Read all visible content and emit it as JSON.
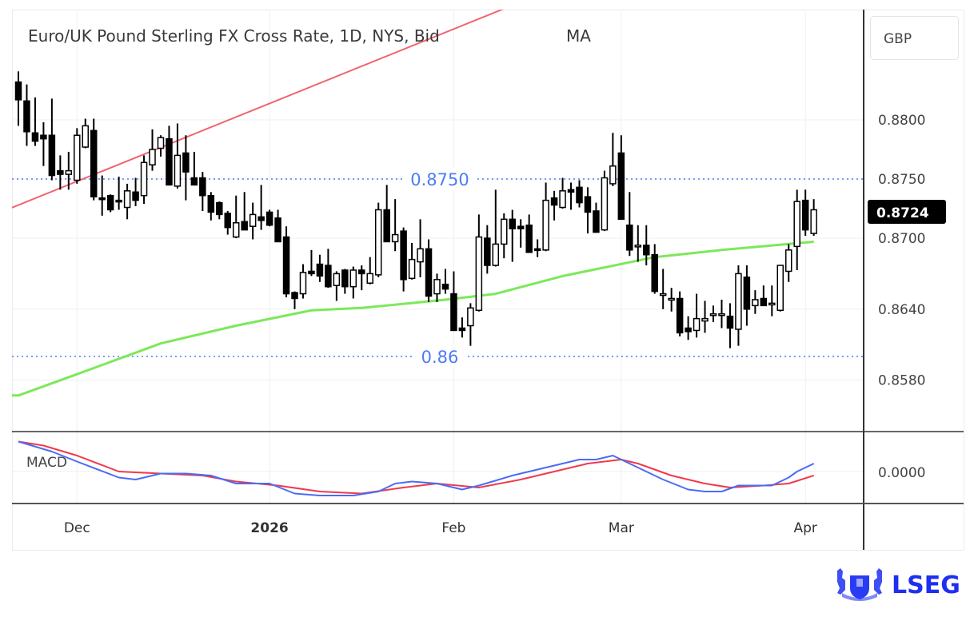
{
  "header": {
    "title": "Euro/UK Pound Sterling FX Cross Rate, 1D, NYS, Bid",
    "indicator": "MA",
    "currency": "GBP"
  },
  "logo": {
    "text": "LSEG",
    "color": "#1f2ff0"
  },
  "chart_data": {
    "type": "candlestick",
    "title": "Euro/UK Pound Sterling FX Cross Rate, 1D, NYS, Bid",
    "y_ticks": [
      "0.8800",
      "0.8750",
      "0.8700",
      "0.8640",
      "0.8580"
    ],
    "x_ticks": [
      {
        "label": "Dec",
        "date": "2025-12-01"
      },
      {
        "label": "2026",
        "date": "2026-01-01"
      },
      {
        "label": "Feb",
        "date": "2026-02-02"
      },
      {
        "label": "Mar",
        "date": "2026-03-02"
      },
      {
        "label": "Apr",
        "date": "2026-04-01"
      }
    ],
    "last_price": "0.8724",
    "grid": true,
    "colors": {
      "down": "#000000",
      "up": "#ffffff",
      "ma": "#7de85a",
      "trendline": "#f06470",
      "level": "#4d7cf5",
      "macd": "#4a6cf5",
      "signal": "#f03a4a"
    },
    "levels": [
      {
        "price": 0.875,
        "label": "0.8750"
      },
      {
        "price": 0.86,
        "label": "0.86"
      }
    ],
    "trendline": [
      {
        "date": "2025-11-20",
        "price": 0.8728
      },
      {
        "date": "2026-02-10",
        "price": 0.8894
      }
    ],
    "ma": [
      [
        "2025-11-20",
        0.8567
      ],
      [
        "2025-12-01",
        0.8585
      ],
      [
        "2025-12-15",
        0.8611
      ],
      [
        "2025-12-26",
        0.8626
      ],
      [
        "2026-01-08",
        0.8639
      ],
      [
        "2026-01-16",
        0.8641
      ],
      [
        "2026-01-30",
        0.8648
      ],
      [
        "2026-02-09",
        0.8653
      ],
      [
        "2026-02-19",
        0.8668
      ],
      [
        "2026-03-06",
        0.8684
      ],
      [
        "2026-03-18",
        0.869
      ],
      [
        "2026-04-02",
        0.8697
      ]
    ],
    "candles": [
      {
        "d": "2025-11-20",
        "o": 0.8832,
        "h": 0.8841,
        "l": 0.8795,
        "c": 0.8817
      },
      {
        "d": "2025-11-21",
        "o": 0.8816,
        "h": 0.883,
        "l": 0.8778,
        "c": 0.879
      },
      {
        "d": "2025-11-24",
        "o": 0.8789,
        "h": 0.8819,
        "l": 0.8778,
        "c": 0.8782
      },
      {
        "d": "2025-11-25",
        "o": 0.8787,
        "h": 0.8798,
        "l": 0.8761,
        "c": 0.8784
      },
      {
        "d": "2025-11-26",
        "o": 0.8787,
        "h": 0.8818,
        "l": 0.8749,
        "c": 0.8753
      },
      {
        "d": "2025-11-27",
        "o": 0.8757,
        "h": 0.877,
        "l": 0.8741,
        "c": 0.8754
      },
      {
        "d": "2025-11-28",
        "o": 0.8754,
        "h": 0.8773,
        "l": 0.8741,
        "c": 0.8757
      },
      {
        "d": "2025-12-01",
        "o": 0.8749,
        "h": 0.8793,
        "l": 0.8746,
        "c": 0.8787
      },
      {
        "d": "2025-12-02",
        "o": 0.8777,
        "h": 0.8801,
        "l": 0.8776,
        "c": 0.8795
      },
      {
        "d": "2025-12-03",
        "o": 0.8791,
        "h": 0.8801,
        "l": 0.8732,
        "c": 0.8735
      },
      {
        "d": "2025-12-04",
        "o": 0.8734,
        "h": 0.8753,
        "l": 0.8719,
        "c": 0.8733
      },
      {
        "d": "2025-12-05",
        "o": 0.8736,
        "h": 0.8737,
        "l": 0.8722,
        "c": 0.8724
      },
      {
        "d": "2025-12-08",
        "o": 0.8732,
        "h": 0.8752,
        "l": 0.8724,
        "c": 0.8731
      },
      {
        "d": "2025-12-09",
        "o": 0.8726,
        "h": 0.8746,
        "l": 0.8716,
        "c": 0.874
      },
      {
        "d": "2025-12-10",
        "o": 0.8739,
        "h": 0.8751,
        "l": 0.8727,
        "c": 0.8732
      },
      {
        "d": "2025-12-11",
        "o": 0.8736,
        "h": 0.877,
        "l": 0.8729,
        "c": 0.8764
      },
      {
        "d": "2025-12-12",
        "o": 0.8762,
        "h": 0.8792,
        "l": 0.8757,
        "c": 0.8775
      },
      {
        "d": "2025-12-15",
        "o": 0.8776,
        "h": 0.8787,
        "l": 0.8769,
        "c": 0.8785
      },
      {
        "d": "2025-12-16",
        "o": 0.8784,
        "h": 0.8795,
        "l": 0.8745,
        "c": 0.8745
      },
      {
        "d": "2025-12-17",
        "o": 0.8744,
        "h": 0.8797,
        "l": 0.8742,
        "c": 0.877
      },
      {
        "d": "2025-12-18",
        "o": 0.8772,
        "h": 0.8787,
        "l": 0.8732,
        "c": 0.8756
      },
      {
        "d": "2025-12-19",
        "o": 0.8751,
        "h": 0.8773,
        "l": 0.8745,
        "c": 0.8745
      },
      {
        "d": "2025-12-22",
        "o": 0.8751,
        "h": 0.8756,
        "l": 0.8723,
        "c": 0.8736
      },
      {
        "d": "2025-12-23",
        "o": 0.8736,
        "h": 0.8739,
        "l": 0.8715,
        "c": 0.8722
      },
      {
        "d": "2025-12-24",
        "o": 0.873,
        "h": 0.8731,
        "l": 0.8716,
        "c": 0.872
      },
      {
        "d": "2025-12-25",
        "o": 0.8721,
        "h": 0.8723,
        "l": 0.8703,
        "c": 0.8709
      },
      {
        "d": "2025-12-26",
        "o": 0.8701,
        "h": 0.8736,
        "l": 0.87,
        "c": 0.8713
      },
      {
        "d": "2025-12-29",
        "o": 0.8714,
        "h": 0.8739,
        "l": 0.8707,
        "c": 0.8707
      },
      {
        "d": "2025-12-30",
        "o": 0.871,
        "h": 0.873,
        "l": 0.8699,
        "c": 0.872
      },
      {
        "d": "2025-12-31",
        "o": 0.8718,
        "h": 0.8745,
        "l": 0.8707,
        "c": 0.8715
      },
      {
        "d": "2026-01-01",
        "o": 0.8722,
        "h": 0.8724,
        "l": 0.871,
        "c": 0.8711
      },
      {
        "d": "2026-01-02",
        "o": 0.8717,
        "h": 0.8724,
        "l": 0.8697,
        "c": 0.8697
      },
      {
        "d": "2026-01-05",
        "o": 0.8701,
        "h": 0.871,
        "l": 0.865,
        "c": 0.8653
      },
      {
        "d": "2026-01-06",
        "o": 0.8654,
        "h": 0.8655,
        "l": 0.864,
        "c": 0.8649
      },
      {
        "d": "2026-01-07",
        "o": 0.8653,
        "h": 0.8678,
        "l": 0.8649,
        "c": 0.8671
      },
      {
        "d": "2026-01-08",
        "o": 0.8672,
        "h": 0.869,
        "l": 0.8668,
        "c": 0.867
      },
      {
        "d": "2026-01-09",
        "o": 0.8678,
        "h": 0.8686,
        "l": 0.8663,
        "c": 0.8668
      },
      {
        "d": "2026-01-12",
        "o": 0.8677,
        "h": 0.8691,
        "l": 0.8658,
        "c": 0.8659
      },
      {
        "d": "2026-01-13",
        "o": 0.866,
        "h": 0.8672,
        "l": 0.8647,
        "c": 0.867
      },
      {
        "d": "2026-01-14",
        "o": 0.8673,
        "h": 0.8674,
        "l": 0.8653,
        "c": 0.8659
      },
      {
        "d": "2026-01-15",
        "o": 0.8659,
        "h": 0.8676,
        "l": 0.8649,
        "c": 0.8673
      },
      {
        "d": "2026-01-16",
        "o": 0.8673,
        "h": 0.8677,
        "l": 0.8656,
        "c": 0.867
      },
      {
        "d": "2026-01-19",
        "o": 0.8662,
        "h": 0.8684,
        "l": 0.8661,
        "c": 0.867
      },
      {
        "d": "2026-01-20",
        "o": 0.8669,
        "h": 0.873,
        "l": 0.8667,
        "c": 0.8724
      },
      {
        "d": "2026-01-21",
        "o": 0.8724,
        "h": 0.8745,
        "l": 0.8697,
        "c": 0.8697
      },
      {
        "d": "2026-01-22",
        "o": 0.8697,
        "h": 0.8733,
        "l": 0.8689,
        "c": 0.8703
      },
      {
        "d": "2026-01-23",
        "o": 0.8706,
        "h": 0.8709,
        "l": 0.8655,
        "c": 0.8665
      },
      {
        "d": "2026-01-26",
        "o": 0.8666,
        "h": 0.8696,
        "l": 0.8665,
        "c": 0.8682
      },
      {
        "d": "2026-01-27",
        "o": 0.868,
        "h": 0.8716,
        "l": 0.8667,
        "c": 0.8691
      },
      {
        "d": "2026-01-28",
        "o": 0.8691,
        "h": 0.8699,
        "l": 0.8646,
        "c": 0.8651
      },
      {
        "d": "2026-01-29",
        "o": 0.8653,
        "h": 0.867,
        "l": 0.8646,
        "c": 0.8665
      },
      {
        "d": "2026-01-30",
        "o": 0.8661,
        "h": 0.8674,
        "l": 0.8653,
        "c": 0.8657
      },
      {
        "d": "2026-02-02",
        "o": 0.8653,
        "h": 0.8672,
        "l": 0.8622,
        "c": 0.8622
      },
      {
        "d": "2026-02-03",
        "o": 0.8624,
        "h": 0.8633,
        "l": 0.8616,
        "c": 0.8622
      },
      {
        "d": "2026-02-04",
        "o": 0.8626,
        "h": 0.8645,
        "l": 0.8609,
        "c": 0.8641
      },
      {
        "d": "2026-02-05",
        "o": 0.8639,
        "h": 0.872,
        "l": 0.8638,
        "c": 0.8701
      },
      {
        "d": "2026-02-06",
        "o": 0.87,
        "h": 0.8711,
        "l": 0.867,
        "c": 0.8677
      },
      {
        "d": "2026-02-09",
        "o": 0.8677,
        "h": 0.8741,
        "l": 0.8676,
        "c": 0.8695
      },
      {
        "d": "2026-02-10",
        "o": 0.8695,
        "h": 0.8721,
        "l": 0.8683,
        "c": 0.8716
      },
      {
        "d": "2026-02-11",
        "o": 0.8716,
        "h": 0.8724,
        "l": 0.868,
        "c": 0.8708
      },
      {
        "d": "2026-02-12",
        "o": 0.871,
        "h": 0.8716,
        "l": 0.8692,
        "c": 0.8708
      },
      {
        "d": "2026-02-13",
        "o": 0.8711,
        "h": 0.872,
        "l": 0.8688,
        "c": 0.8688
      },
      {
        "d": "2026-02-16",
        "o": 0.8691,
        "h": 0.8699,
        "l": 0.8684,
        "c": 0.869
      },
      {
        "d": "2026-02-17",
        "o": 0.869,
        "h": 0.8747,
        "l": 0.8689,
        "c": 0.8732
      },
      {
        "d": "2026-02-18",
        "o": 0.8734,
        "h": 0.874,
        "l": 0.8715,
        "c": 0.8728
      },
      {
        "d": "2026-02-19",
        "o": 0.8726,
        "h": 0.8751,
        "l": 0.8725,
        "c": 0.874
      },
      {
        "d": "2026-02-20",
        "o": 0.8741,
        "h": 0.8747,
        "l": 0.8724,
        "c": 0.8739
      },
      {
        "d": "2026-02-23",
        "o": 0.8743,
        "h": 0.8749,
        "l": 0.8726,
        "c": 0.873
      },
      {
        "d": "2026-02-24",
        "o": 0.8735,
        "h": 0.8743,
        "l": 0.8704,
        "c": 0.8722
      },
      {
        "d": "2026-02-25",
        "o": 0.8723,
        "h": 0.873,
        "l": 0.8705,
        "c": 0.8705
      },
      {
        "d": "2026-02-26",
        "o": 0.8707,
        "h": 0.8757,
        "l": 0.8706,
        "c": 0.8751
      },
      {
        "d": "2026-02-27",
        "o": 0.8746,
        "h": 0.8789,
        "l": 0.8744,
        "c": 0.8761
      },
      {
        "d": "2026-03-02",
        "o": 0.8772,
        "h": 0.8787,
        "l": 0.8716,
        "c": 0.8716
      },
      {
        "d": "2026-03-03",
        "o": 0.8711,
        "h": 0.8739,
        "l": 0.8685,
        "c": 0.869
      },
      {
        "d": "2026-03-04",
        "o": 0.8694,
        "h": 0.8711,
        "l": 0.868,
        "c": 0.8694
      },
      {
        "d": "2026-03-05",
        "o": 0.8694,
        "h": 0.8711,
        "l": 0.8677,
        "c": 0.8686
      },
      {
        "d": "2026-03-06",
        "o": 0.8686,
        "h": 0.8695,
        "l": 0.8653,
        "c": 0.8655
      },
      {
        "d": "2026-03-09",
        "o": 0.8653,
        "h": 0.8674,
        "l": 0.864,
        "c": 0.8653
      },
      {
        "d": "2026-03-10",
        "o": 0.8649,
        "h": 0.8658,
        "l": 0.8638,
        "c": 0.8649
      },
      {
        "d": "2026-03-11",
        "o": 0.8649,
        "h": 0.8655,
        "l": 0.8617,
        "c": 0.862
      },
      {
        "d": "2026-03-12",
        "o": 0.8624,
        "h": 0.8634,
        "l": 0.8614,
        "c": 0.8621
      },
      {
        "d": "2026-03-13",
        "o": 0.8622,
        "h": 0.8653,
        "l": 0.8616,
        "c": 0.8632
      },
      {
        "d": "2026-03-16",
        "o": 0.863,
        "h": 0.8647,
        "l": 0.862,
        "c": 0.8632
      },
      {
        "d": "2026-03-17",
        "o": 0.8636,
        "h": 0.8643,
        "l": 0.8629,
        "c": 0.8636
      },
      {
        "d": "2026-03-18",
        "o": 0.8636,
        "h": 0.8648,
        "l": 0.8624,
        "c": 0.8636
      },
      {
        "d": "2026-03-19",
        "o": 0.8634,
        "h": 0.8645,
        "l": 0.8607,
        "c": 0.8624
      },
      {
        "d": "2026-03-20",
        "o": 0.8623,
        "h": 0.8677,
        "l": 0.8609,
        "c": 0.867
      },
      {
        "d": "2026-03-23",
        "o": 0.8667,
        "h": 0.8677,
        "l": 0.8626,
        "c": 0.864
      },
      {
        "d": "2026-03-24",
        "o": 0.8643,
        "h": 0.8656,
        "l": 0.8636,
        "c": 0.8648
      },
      {
        "d": "2026-03-25",
        "o": 0.8649,
        "h": 0.866,
        "l": 0.8643,
        "c": 0.8643
      },
      {
        "d": "2026-03-26",
        "o": 0.8645,
        "h": 0.866,
        "l": 0.8634,
        "c": 0.8645
      },
      {
        "d": "2026-03-27",
        "o": 0.8639,
        "h": 0.8677,
        "l": 0.8638,
        "c": 0.8677
      },
      {
        "d": "2026-03-30",
        "o": 0.8672,
        "h": 0.8695,
        "l": 0.8663,
        "c": 0.869
      },
      {
        "d": "2026-03-31",
        "o": 0.8693,
        "h": 0.8741,
        "l": 0.8673,
        "c": 0.8731
      },
      {
        "d": "2026-04-01",
        "o": 0.8732,
        "h": 0.8741,
        "l": 0.8702,
        "c": 0.8707
      },
      {
        "d": "2026-04-02",
        "o": 0.8704,
        "h": 0.8733,
        "l": 0.8702,
        "c": 0.8724
      }
    ],
    "macd_panel": {
      "label": "MACD",
      "y_ticks": [
        "0.0000"
      ],
      "ylim": [
        -0.0015,
        0.0015
      ],
      "macd": [
        [
          "2025-11-20",
          0.0015
        ],
        [
          "2025-11-26",
          0.001
        ],
        [
          "2025-12-01",
          0.0005
        ],
        [
          "2025-12-08",
          -0.0003
        ],
        [
          "2025-12-10",
          -0.0004
        ],
        [
          "2025-12-15",
          -0.0001
        ],
        [
          "2025-12-18",
          -0.0001
        ],
        [
          "2025-12-23",
          -0.0002
        ],
        [
          "2025-12-26",
          -0.0006
        ],
        [
          "2026-01-01",
          -0.0006
        ],
        [
          "2026-01-06",
          -0.0011
        ],
        [
          "2026-01-09",
          -0.0012
        ],
        [
          "2026-01-15",
          -0.0012
        ],
        [
          "2026-01-20",
          -0.001
        ],
        [
          "2026-01-22",
          -0.0006
        ],
        [
          "2026-01-26",
          -0.0005
        ],
        [
          "2026-01-29",
          -0.0006
        ],
        [
          "2026-02-03",
          -0.0009
        ],
        [
          "2026-02-05",
          -0.0007
        ],
        [
          "2026-02-11",
          -0.0002
        ],
        [
          "2026-02-16",
          0.0001
        ],
        [
          "2026-02-19",
          0.0004
        ],
        [
          "2026-02-23",
          0.0006
        ],
        [
          "2026-02-25",
          0.0006
        ],
        [
          "2026-02-27",
          0.0008
        ],
        [
          "2026-03-03",
          0.0004
        ],
        [
          "2026-03-09",
          -0.0004
        ],
        [
          "2026-03-12",
          -0.0009
        ],
        [
          "2026-03-16",
          -0.001
        ],
        [
          "2026-03-18",
          -0.001
        ],
        [
          "2026-03-20",
          -0.0007
        ],
        [
          "2026-03-26",
          -0.0007
        ],
        [
          "2026-03-30",
          -0.0003
        ],
        [
          "2026-03-31",
          0.0
        ],
        [
          "2026-04-02",
          0.0004
        ]
      ],
      "signal": [
        [
          "2025-11-20",
          0.0015
        ],
        [
          "2025-11-25",
          0.0013
        ],
        [
          "2025-12-01",
          0.0008
        ],
        [
          "2025-12-08",
          0.0
        ],
        [
          "2025-12-15",
          -0.0001
        ],
        [
          "2025-12-22",
          -0.0002
        ],
        [
          "2025-12-26",
          -0.0005
        ],
        [
          "2026-01-02",
          -0.0007
        ],
        [
          "2026-01-09",
          -0.001
        ],
        [
          "2026-01-16",
          -0.0011
        ],
        [
          "2026-01-23",
          -0.0008
        ],
        [
          "2026-01-29",
          -0.0006
        ],
        [
          "2026-02-05",
          -0.0008
        ],
        [
          "2026-02-12",
          -0.0004
        ],
        [
          "2026-02-19",
          0.0001
        ],
        [
          "2026-02-24",
          0.0004
        ],
        [
          "2026-03-02",
          0.0006
        ],
        [
          "2026-03-04",
          0.0004
        ],
        [
          "2026-03-10",
          -0.0002
        ],
        [
          "2026-03-16",
          -0.0006
        ],
        [
          "2026-03-19",
          -0.0008
        ],
        [
          "2026-03-25",
          -0.0007
        ],
        [
          "2026-03-30",
          -0.0006
        ],
        [
          "2026-04-02",
          -0.0002
        ]
      ]
    }
  }
}
